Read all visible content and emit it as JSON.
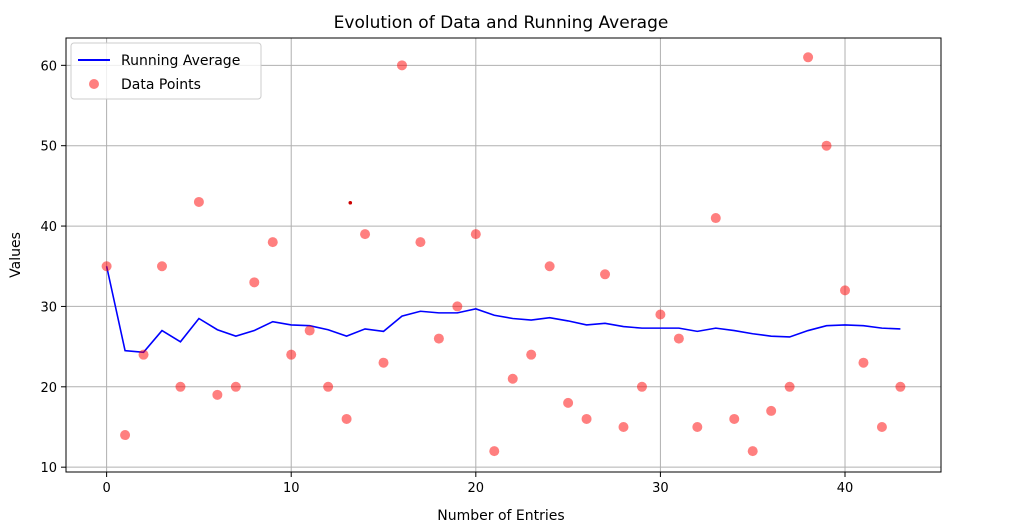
{
  "chart_data": {
    "type": "line",
    "title": "Evolution of Data and Running Average",
    "xlabel": "Number of Entries",
    "ylabel": "Values",
    "xlim": [
      -2.2,
      45.2
    ],
    "ylim": [
      9.4,
      63.4
    ],
    "xticks": [
      0,
      10,
      20,
      30,
      40
    ],
    "yticks": [
      10,
      20,
      30,
      40,
      50,
      60
    ],
    "grid": true,
    "legend_position": "top-left",
    "series": [
      {
        "name": "Running Average",
        "kind": "line",
        "color": "#0000ff",
        "x": [
          0,
          1,
          2,
          3,
          4,
          5,
          6,
          7,
          8,
          9,
          10,
          11,
          12,
          13,
          14,
          15,
          16,
          17,
          18,
          19,
          20,
          21,
          22,
          23,
          24,
          25,
          26,
          27,
          28,
          29,
          30,
          31,
          32,
          33,
          34,
          35,
          36,
          37,
          38,
          39,
          40,
          41,
          42,
          43
        ],
        "y": [
          35.0,
          24.5,
          24.3,
          27.0,
          25.6,
          28.5,
          27.1,
          26.3,
          27.0,
          28.1,
          27.7,
          27.6,
          27.1,
          26.3,
          27.2,
          26.9,
          28.8,
          29.4,
          29.2,
          29.2,
          29.7,
          28.9,
          28.5,
          28.3,
          28.6,
          28.2,
          27.7,
          27.9,
          27.5,
          27.3,
          27.3,
          27.3,
          26.9,
          27.3,
          27.0,
          26.6,
          26.3,
          26.2,
          27.0,
          27.6,
          27.7,
          27.6,
          27.3,
          27.2
        ]
      },
      {
        "name": "Data Points",
        "kind": "scatter",
        "color": "#ff0000",
        "opacity": 0.5,
        "x": [
          0,
          1,
          2,
          3,
          4,
          5,
          6,
          7,
          8,
          9,
          10,
          11,
          12,
          13,
          14,
          15,
          16,
          17,
          18,
          19,
          20,
          21,
          22,
          23,
          24,
          25,
          26,
          27,
          28,
          29,
          30,
          31,
          32,
          33,
          34,
          35,
          36,
          37,
          38,
          39,
          40,
          41,
          42,
          43
        ],
        "y": [
          35,
          14,
          24,
          35,
          20,
          43,
          19,
          20,
          33,
          38,
          24,
          27,
          20,
          16,
          39,
          23,
          60,
          38,
          26,
          30,
          39,
          12,
          21,
          24,
          35,
          18,
          16,
          34,
          15,
          20,
          29,
          26,
          15,
          41,
          16,
          12,
          17,
          20,
          61,
          50,
          32,
          23,
          15,
          20
        ]
      }
    ],
    "annotations": [
      {
        "kind": "marker",
        "x": 13.2,
        "y": 42.9,
        "color": "#cc0000"
      }
    ]
  }
}
